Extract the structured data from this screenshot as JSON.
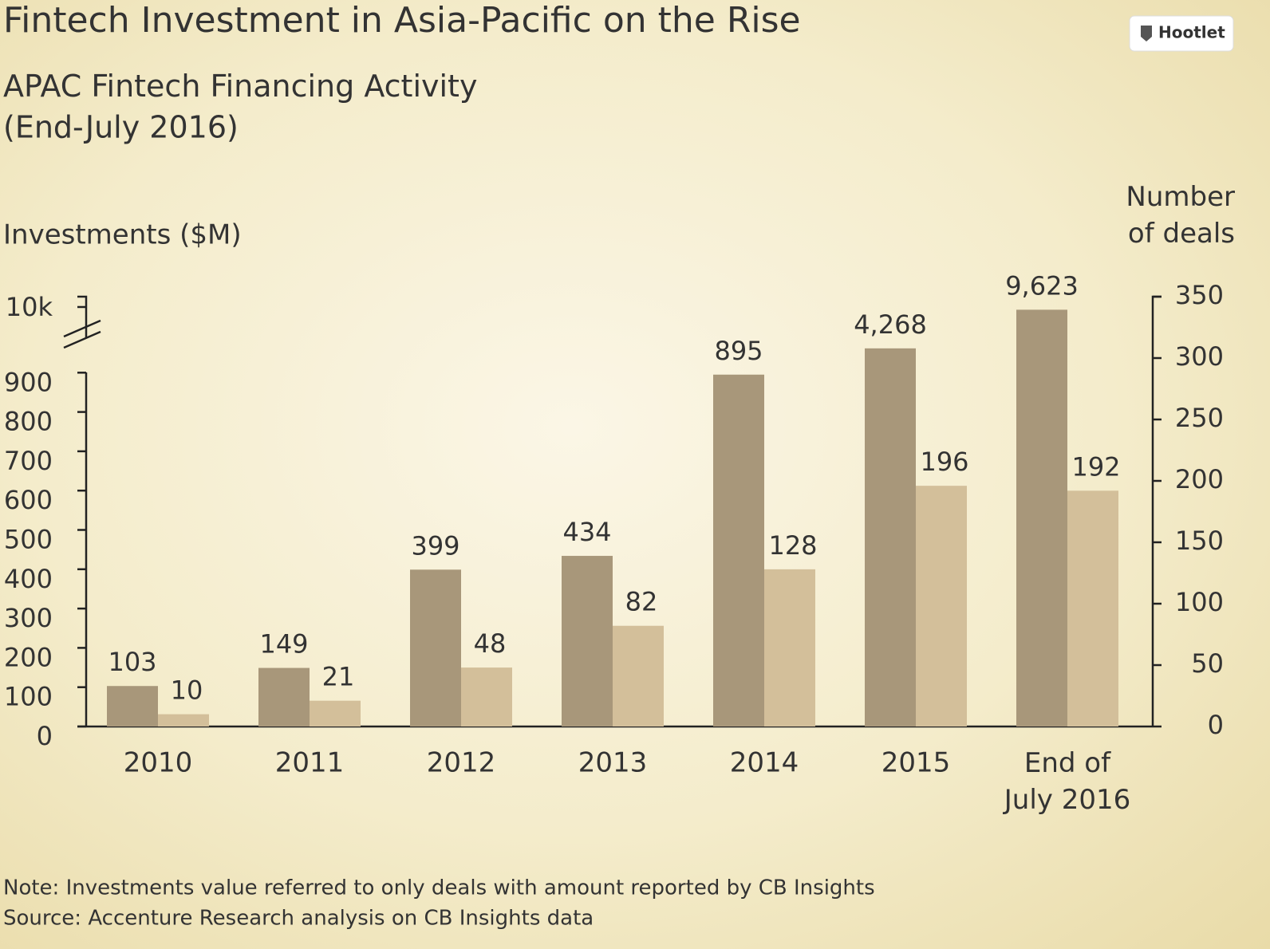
{
  "chart_data": {
    "type": "bar",
    "title": "Fintech Investment in Asia-Pacific on the Rise",
    "subtitle": "APAC Fintech Financing Activity\n(End-July 2016)",
    "badge": "Hootlet",
    "y_label": "Investments ($M)",
    "y2_label": "Number\nof deals",
    "categories": [
      "2010",
      "2011",
      "2012",
      "2013",
      "2014",
      "2015",
      "End of\nJuly 2016"
    ],
    "series": [
      {
        "color": "#a8977a",
        "values": [
          103,
          149,
          399,
          434,
          895,
          4268,
          9623
        ],
        "value_labels": [
          "103",
          "149",
          "399",
          "434",
          "895",
          "4,268",
          "9,623"
        ]
      },
      {
        "color": "#d3bf9a",
        "axis": "y2",
        "values": [
          10,
          21,
          48,
          82,
          128,
          196,
          192
        ]
      }
    ],
    "ylim": [
      0,
      10000
    ],
    "yticks": [
      0,
      100,
      200,
      300,
      400,
      500,
      600,
      700,
      800,
      900,
      {
        "value": 10000,
        "label": "10k"
      }
    ],
    "axis_break": true,
    "y2lim": [
      0,
      350
    ],
    "y2ticks": [
      0,
      50,
      100,
      150,
      200,
      250,
      300,
      350
    ],
    "notes": [
      "Note: Investments value referred to only deals with amount reported by CB Insights",
      "Source: Accenture Research analysis on CB Insights data"
    ]
  }
}
